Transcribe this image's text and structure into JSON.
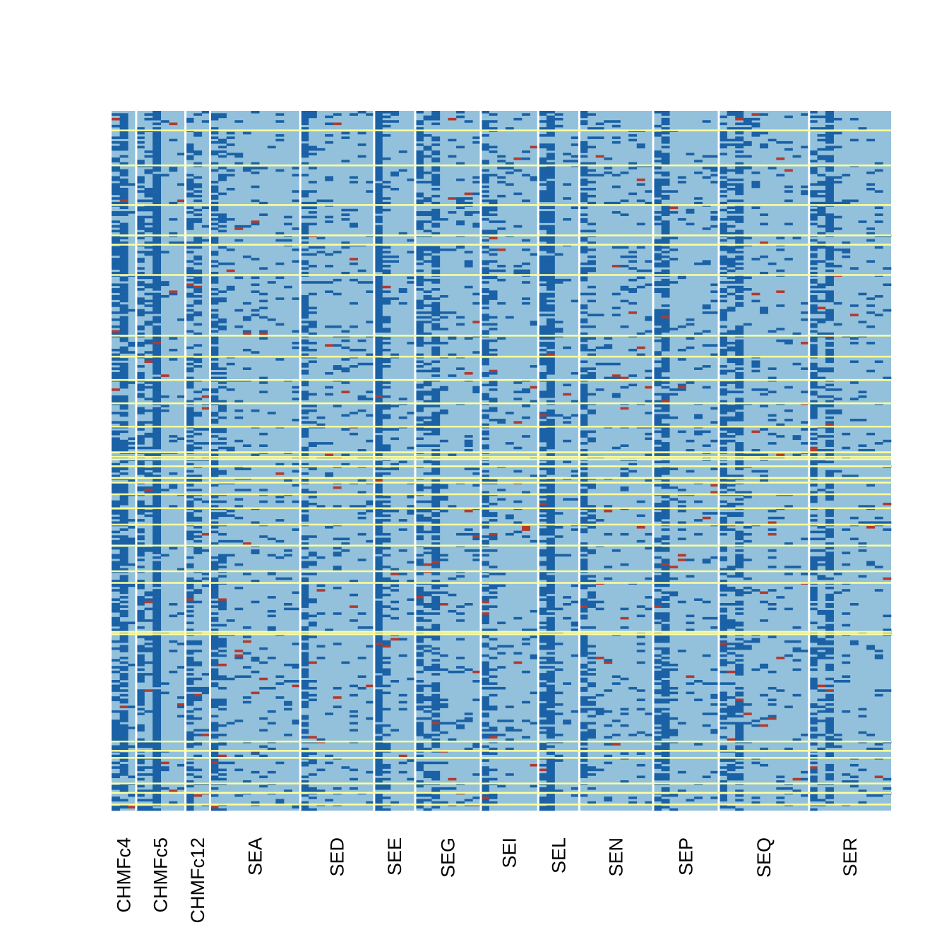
{
  "chart_data": {
    "type": "heatmap",
    "title": "",
    "xlabel": "",
    "ylabel": "",
    "legend": "none",
    "grid": false,
    "colors": {
      "base": "#93c1dc",
      "present": "#1a61a6",
      "rare": "#b23a2e",
      "separator": "#ffffff",
      "highlight_row": "#ffff99"
    },
    "n_rows": 300,
    "columns": [
      {
        "label": "CHMFc4",
        "subcols": 3
      },
      {
        "label": "CHMFc5",
        "subcols": 6
      },
      {
        "label": "CHMFc12",
        "subcols": 3
      },
      {
        "label": "SEA",
        "subcols": 11
      },
      {
        "label": "SED",
        "subcols": 9
      },
      {
        "label": "SEE",
        "subcols": 5
      },
      {
        "label": "SEG",
        "subcols": 8
      },
      {
        "label": "SEI",
        "subcols": 7
      },
      {
        "label": "SEL",
        "subcols": 5
      },
      {
        "label": "SEN",
        "subcols": 9
      },
      {
        "label": "SEP",
        "subcols": 8
      },
      {
        "label": "SEQ",
        "subcols": 11
      },
      {
        "label": "SER",
        "subcols": 10
      }
    ],
    "highlight_rows": [
      8,
      23,
      40,
      53,
      57,
      70,
      96,
      105,
      115,
      125,
      135,
      146,
      157,
      149,
      148,
      152,
      159,
      164,
      170,
      177,
      186,
      197,
      202,
      223,
      224,
      270,
      274,
      277,
      288,
      292,
      297
    ]
  }
}
